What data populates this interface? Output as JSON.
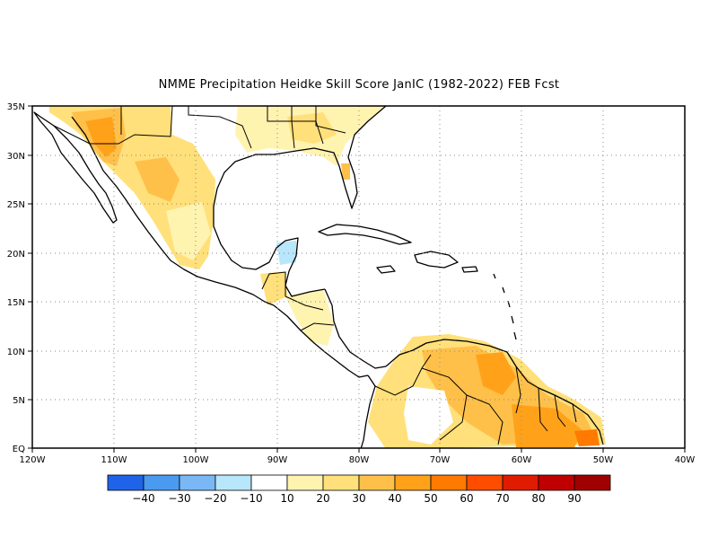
{
  "title": "NMME  Precipitation Heidke Skill Score JanIC (1982-2022) FEB Fcst",
  "map": {
    "lon_range": [
      -120,
      -40
    ],
    "lat_range": [
      0,
      35
    ],
    "lon_ticks": [
      "120W",
      "110W",
      "100W",
      "90W",
      "80W",
      "70W",
      "60W",
      "50W",
      "40W"
    ],
    "lat_ticks": [
      "EQ",
      "5N",
      "10N",
      "15N",
      "20N",
      "25N",
      "30N",
      "35N"
    ],
    "grid": "dotted"
  },
  "colorbar": {
    "colors": [
      "#1f63e8",
      "#4a9af0",
      "#7ab8f5",
      "#b8e6fb",
      "#ffffff",
      "#fff3b0",
      "#ffe07a",
      "#ffc04a",
      "#ffa21a",
      "#ff7a00",
      "#ff4d00",
      "#e01c00",
      "#c00000",
      "#a00000"
    ],
    "labels": [
      "-40",
      "-30",
      "-20",
      "-10",
      "10",
      "20",
      "30",
      "40",
      "50",
      "60",
      "70",
      "80",
      "90"
    ]
  },
  "regions": {
    "mexico_sw_us": "20-60",
    "southeast_us": "10-30",
    "yucatan_guatemala": "-10 to 10",
    "central_america": "10-30",
    "northern_south_america": "20-70"
  }
}
